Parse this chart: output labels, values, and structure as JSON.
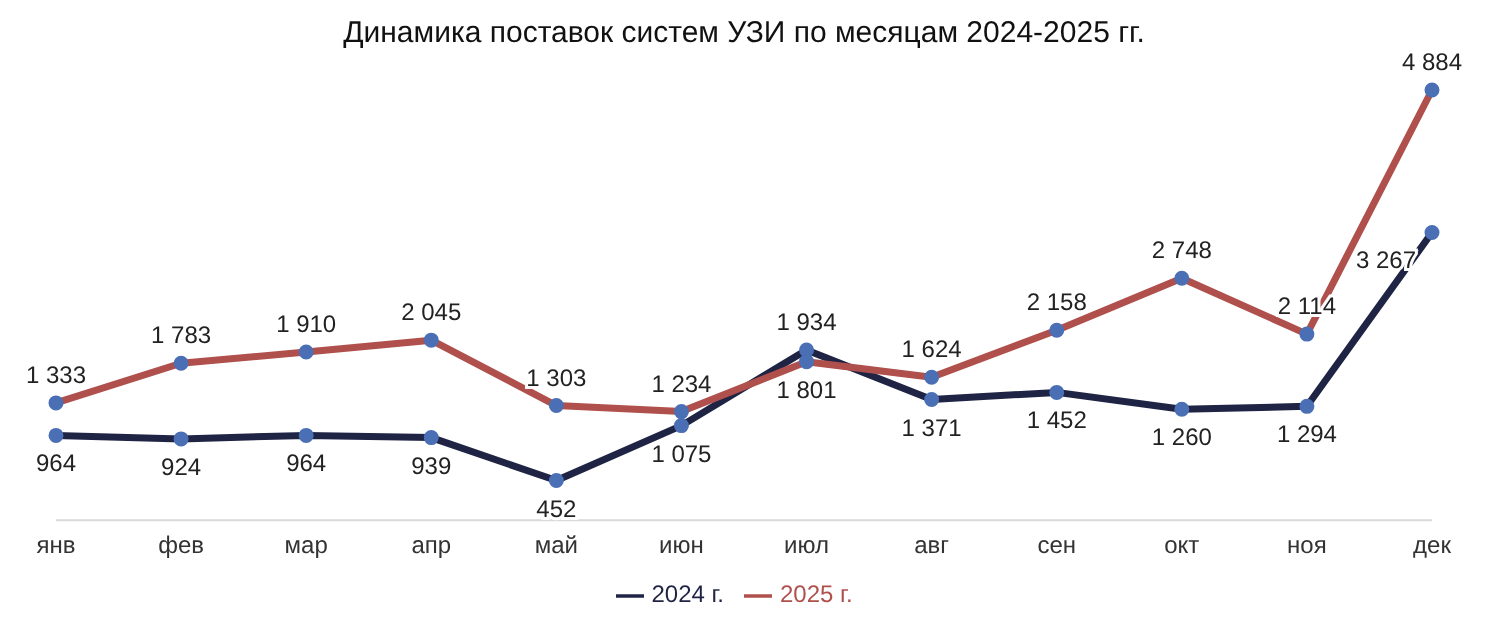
{
  "chart_data": {
    "type": "line",
    "title": "Динамика поставок систем УЗИ по месяцам 2024-2025 гг.",
    "categories": [
      "янв",
      "фев",
      "мар",
      "апр",
      "май",
      "июн",
      "июл",
      "авг",
      "сен",
      "окт",
      "ноя",
      "дек"
    ],
    "series": [
      {
        "name": "2024 г.",
        "color": "#1f2444",
        "values": [
          964,
          924,
          964,
          939,
          452,
          1075,
          1934,
          1371,
          1452,
          1260,
          1294,
          3267
        ]
      },
      {
        "name": "2025 г.",
        "color": "#b0504c",
        "values": [
          1333,
          1783,
          1910,
          2045,
          1303,
          1234,
          1801,
          1624,
          2158,
          2748,
          2114,
          4884
        ]
      }
    ],
    "data_labels": true,
    "legend": "bottom",
    "marker": "circle",
    "line_style": "solid"
  }
}
